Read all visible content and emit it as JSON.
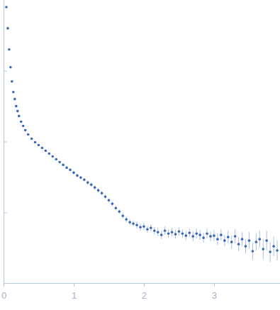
{
  "chart_data": {
    "type": "scatter",
    "color": "#3b67b9",
    "marker": "circle",
    "tick_labels": "x",
    "xlim": [
      0,
      3.94
    ],
    "xticks": [
      0,
      1,
      2,
      3
    ],
    "ylim": [
      0,
      4
    ],
    "yticks": [
      1,
      2,
      3
    ],
    "x": [
      0.04,
      0.06,
      0.08,
      0.1,
      0.12,
      0.14,
      0.16,
      0.18,
      0.2,
      0.22,
      0.25,
      0.28,
      0.31,
      0.35,
      0.4,
      0.45,
      0.5,
      0.55,
      0.6,
      0.65,
      0.7,
      0.75,
      0.8,
      0.85,
      0.9,
      0.95,
      1.0,
      1.05,
      1.1,
      1.15,
      1.2,
      1.25,
      1.3,
      1.35,
      1.4,
      1.45,
      1.5,
      1.55,
      1.6,
      1.65,
      1.7,
      1.75,
      1.8,
      1.85,
      1.9,
      1.95,
      2.0,
      2.05,
      2.1,
      2.15,
      2.2,
      2.25,
      2.3,
      2.35,
      2.4,
      2.45,
      2.5,
      2.55,
      2.6,
      2.65,
      2.7,
      2.75,
      2.8,
      2.85,
      2.9,
      2.95,
      3.0,
      3.05,
      3.1,
      3.15,
      3.2,
      3.25,
      3.3,
      3.35,
      3.4,
      3.45,
      3.5,
      3.55,
      3.6,
      3.65,
      3.7,
      3.75,
      3.8,
      3.85,
      3.9
    ],
    "values": [
      3.9,
      3.6,
      3.3,
      3.05,
      2.85,
      2.7,
      2.6,
      2.5,
      2.43,
      2.36,
      2.28,
      2.22,
      2.16,
      2.1,
      2.04,
      1.99,
      1.95,
      1.91,
      1.87,
      1.83,
      1.79,
      1.75,
      1.71,
      1.67,
      1.63,
      1.6,
      1.56,
      1.52,
      1.49,
      1.46,
      1.42,
      1.39,
      1.35,
      1.31,
      1.27,
      1.22,
      1.17,
      1.12,
      1.06,
      1.01,
      0.95,
      0.9,
      0.86,
      0.84,
      0.82,
      0.79,
      0.8,
      0.76,
      0.78,
      0.74,
      0.72,
      0.68,
      0.74,
      0.7,
      0.72,
      0.69,
      0.73,
      0.7,
      0.67,
      0.71,
      0.66,
      0.7,
      0.68,
      0.64,
      0.7,
      0.66,
      0.67,
      0.62,
      0.68,
      0.6,
      0.65,
      0.58,
      0.66,
      0.55,
      0.62,
      0.52,
      0.6,
      0.45,
      0.58,
      0.62,
      0.48,
      0.6,
      0.44,
      0.52,
      0.46
    ],
    "errors": [
      0.01,
      0.01,
      0.01,
      0.01,
      0.01,
      0.01,
      0.01,
      0.01,
      0.01,
      0.01,
      0.01,
      0.01,
      0.01,
      0.01,
      0.01,
      0.01,
      0.01,
      0.01,
      0.01,
      0.01,
      0.01,
      0.01,
      0.015,
      0.015,
      0.015,
      0.015,
      0.02,
      0.02,
      0.02,
      0.02,
      0.03,
      0.03,
      0.03,
      0.03,
      0.03,
      0.03,
      0.03,
      0.03,
      0.03,
      0.03,
      0.04,
      0.04,
      0.04,
      0.04,
      0.05,
      0.05,
      0.05,
      0.05,
      0.05,
      0.05,
      0.06,
      0.06,
      0.06,
      0.06,
      0.06,
      0.06,
      0.06,
      0.06,
      0.06,
      0.06,
      0.07,
      0.07,
      0.07,
      0.07,
      0.07,
      0.07,
      0.08,
      0.08,
      0.08,
      0.08,
      0.09,
      0.09,
      0.1,
      0.1,
      0.1,
      0.1,
      0.12,
      0.12,
      0.12,
      0.12,
      0.14,
      0.14,
      0.14,
      0.14,
      0.14
    ]
  }
}
